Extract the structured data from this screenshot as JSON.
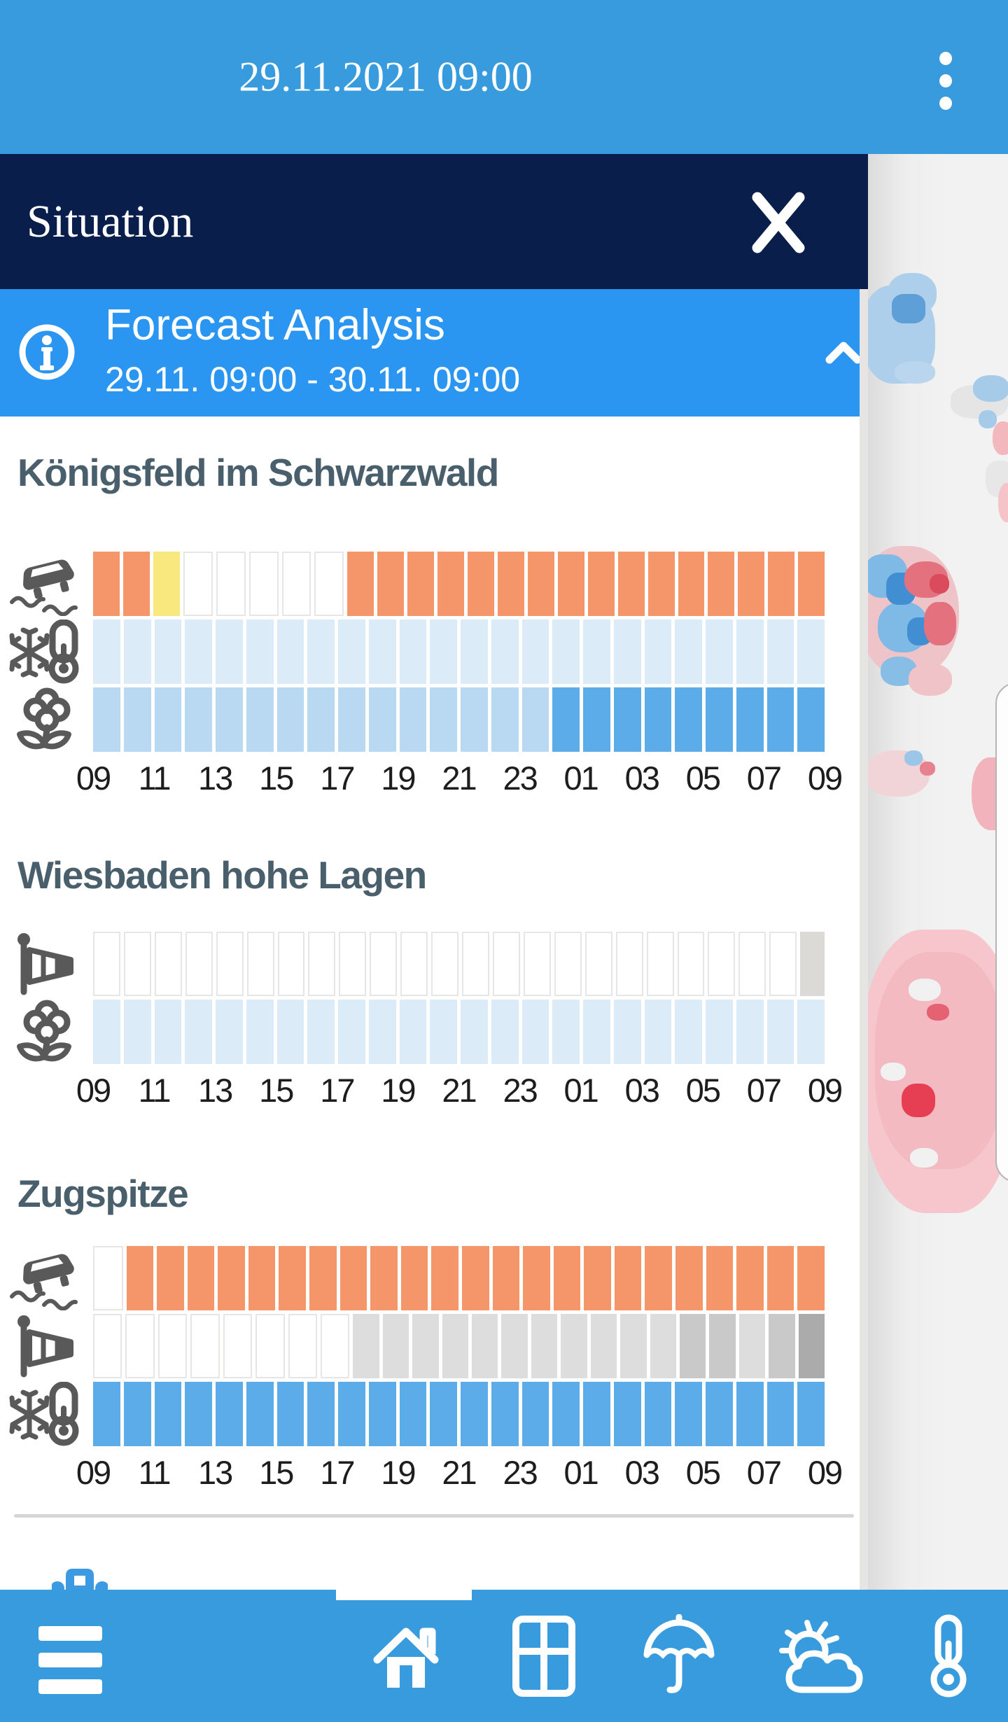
{
  "top_bar": {
    "title": "29.11.2021 09:00",
    "menu_icon": "kebab-menu-icon"
  },
  "panel": {
    "situation": {
      "title": "Situation",
      "close_icon": "close-icon"
    },
    "forecast": {
      "title": "Forecast Analysis",
      "subtitle": "29.11. 09:00 - 30.11. 09:00",
      "info_icon": "info-icon",
      "collapse_icon": "chevron-up-icon"
    }
  },
  "hours": [
    "09",
    "11",
    "13",
    "15",
    "17",
    "19",
    "21",
    "23",
    "01",
    "03",
    "05",
    "07",
    "09"
  ],
  "colors": {
    "o": "#f4956a",
    "y": "#f8e87d",
    "w": "#ffffff",
    "pb": "#dcebf8",
    "lb": "#b9d8f1",
    "b": "#5bace9",
    "lg": "#dddddd",
    "mg": "#c9c9c9",
    "dg": "#ababab",
    "wg": "#dcdad7",
    "accent_blue": "#2b96f1",
    "bar_blue": "#389bdd",
    "navy": "#0a1e4c",
    "title_slate": "#4a5f6c",
    "icon_gray": "#595959"
  },
  "chart_data": [
    {
      "type": "heatmap",
      "station": "Königsfeld im Schwarzwald",
      "categories": [
        "09",
        "11",
        "13",
        "15",
        "17",
        "19",
        "21",
        "23",
        "01",
        "03",
        "05",
        "07",
        "09"
      ],
      "rows": [
        {
          "icon": "slippery-road",
          "cells": [
            "o",
            "o",
            "y",
            "w",
            "w",
            "w",
            "w",
            "w",
            "o",
            "o",
            "o",
            "o",
            "o",
            "o",
            "o",
            "o",
            "o",
            "o",
            "o",
            "o",
            "o",
            "o",
            "o",
            "o"
          ]
        },
        {
          "icon": "frost-thermometer",
          "cells": [
            "pb",
            "pb",
            "pb",
            "pb",
            "pb",
            "pb",
            "pb",
            "pb",
            "pb",
            "pb",
            "pb",
            "pb",
            "pb",
            "pb",
            "pb",
            "pb",
            "pb",
            "pb",
            "pb",
            "pb",
            "pb",
            "pb",
            "pb",
            "pb"
          ]
        },
        {
          "icon": "flower",
          "cells": [
            "lb",
            "lb",
            "lb",
            "lb",
            "lb",
            "lb",
            "lb",
            "lb",
            "lb",
            "lb",
            "lb",
            "lb",
            "lb",
            "lb",
            "lb",
            "b",
            "b",
            "b",
            "b",
            "b",
            "b",
            "b",
            "b",
            "b"
          ]
        }
      ]
    },
    {
      "type": "heatmap",
      "station": "Wiesbaden hohe Lagen",
      "categories": [
        "09",
        "11",
        "13",
        "15",
        "17",
        "19",
        "21",
        "23",
        "01",
        "03",
        "05",
        "07",
        "09"
      ],
      "rows": [
        {
          "icon": "windsock",
          "cells": [
            "w",
            "w",
            "w",
            "w",
            "w",
            "w",
            "w",
            "w",
            "w",
            "w",
            "w",
            "w",
            "w",
            "w",
            "w",
            "w",
            "w",
            "w",
            "w",
            "w",
            "w",
            "w",
            "w",
            "wg"
          ]
        },
        {
          "icon": "flower",
          "cells": [
            "pb",
            "pb",
            "pb",
            "pb",
            "pb",
            "pb",
            "pb",
            "pb",
            "pb",
            "pb",
            "pb",
            "pb",
            "pb",
            "pb",
            "pb",
            "pb",
            "pb",
            "pb",
            "pb",
            "pb",
            "pb",
            "pb",
            "pb",
            "pb"
          ]
        }
      ]
    },
    {
      "type": "heatmap",
      "station": "Zugspitze",
      "categories": [
        "09",
        "11",
        "13",
        "15",
        "17",
        "19",
        "21",
        "23",
        "01",
        "03",
        "05",
        "07",
        "09"
      ],
      "rows": [
        {
          "icon": "slippery-road",
          "cells": [
            "w",
            "o",
            "o",
            "o",
            "o",
            "o",
            "o",
            "o",
            "o",
            "o",
            "o",
            "o",
            "o",
            "o",
            "o",
            "o",
            "o",
            "o",
            "o",
            "o",
            "o",
            "o",
            "o",
            "o"
          ]
        },
        {
          "icon": "windsock",
          "cells": [
            "w",
            "w",
            "w",
            "w",
            "w",
            "w",
            "w",
            "w",
            "lg",
            "lg",
            "lg",
            "lg",
            "lg",
            "lg",
            "lg",
            "lg",
            "lg",
            "lg",
            "lg",
            "mg",
            "mg",
            "lg",
            "mg",
            "dg"
          ]
        },
        {
          "icon": "frost-thermometer",
          "cells": [
            "b",
            "b",
            "b",
            "b",
            "b",
            "b",
            "b",
            "b",
            "b",
            "b",
            "b",
            "b",
            "b",
            "b",
            "b",
            "b",
            "b",
            "b",
            "b",
            "b",
            "b",
            "b",
            "b",
            "b"
          ]
        }
      ]
    }
  ],
  "bottom_bar": {
    "items": [
      {
        "icon": "hamburger-menu-icon"
      },
      {
        "icon": "home-icon"
      },
      {
        "icon": "window-grid-icon"
      },
      {
        "icon": "umbrella-icon"
      },
      {
        "icon": "sun-cloud-icon"
      },
      {
        "icon": "thermometer-icon"
      }
    ]
  }
}
